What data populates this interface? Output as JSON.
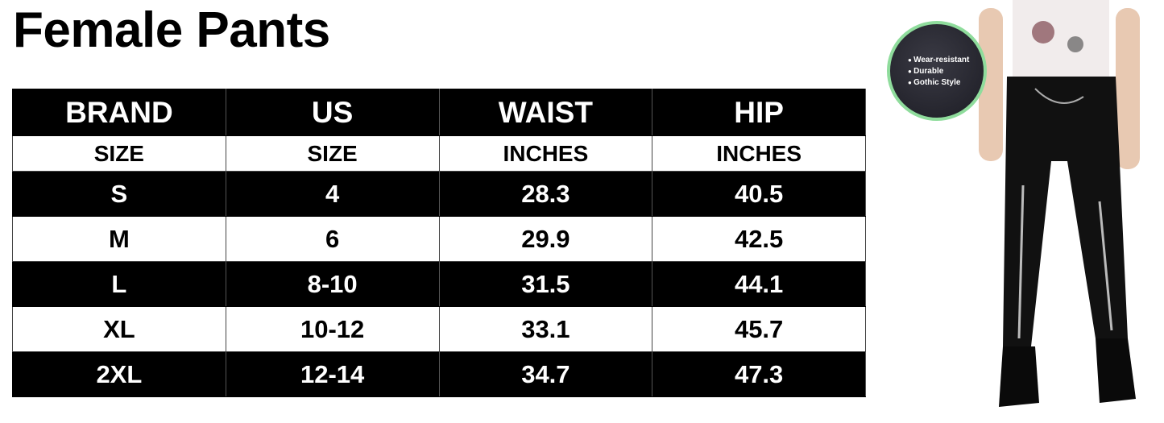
{
  "title": "Female Pants",
  "table": {
    "headers": [
      "BRAND",
      "US",
      "WAIST",
      "HIP"
    ],
    "subheaders": [
      "SIZE",
      "SIZE",
      "INCHES",
      "INCHES"
    ],
    "rows": [
      [
        "S",
        "4",
        "28.3",
        "40.5"
      ],
      [
        "M",
        "6",
        "29.9",
        "42.5"
      ],
      [
        "L",
        "8-10",
        "31.5",
        "44.1"
      ],
      [
        "XL",
        "10-12",
        "33.1",
        "45.7"
      ],
      [
        "2XL",
        "12-14",
        "34.7",
        "47.3"
      ]
    ]
  },
  "badge": {
    "features": [
      "Wear-resistant",
      "Durable",
      "Gothic Style"
    ],
    "border_color": "#8fdc9c"
  }
}
